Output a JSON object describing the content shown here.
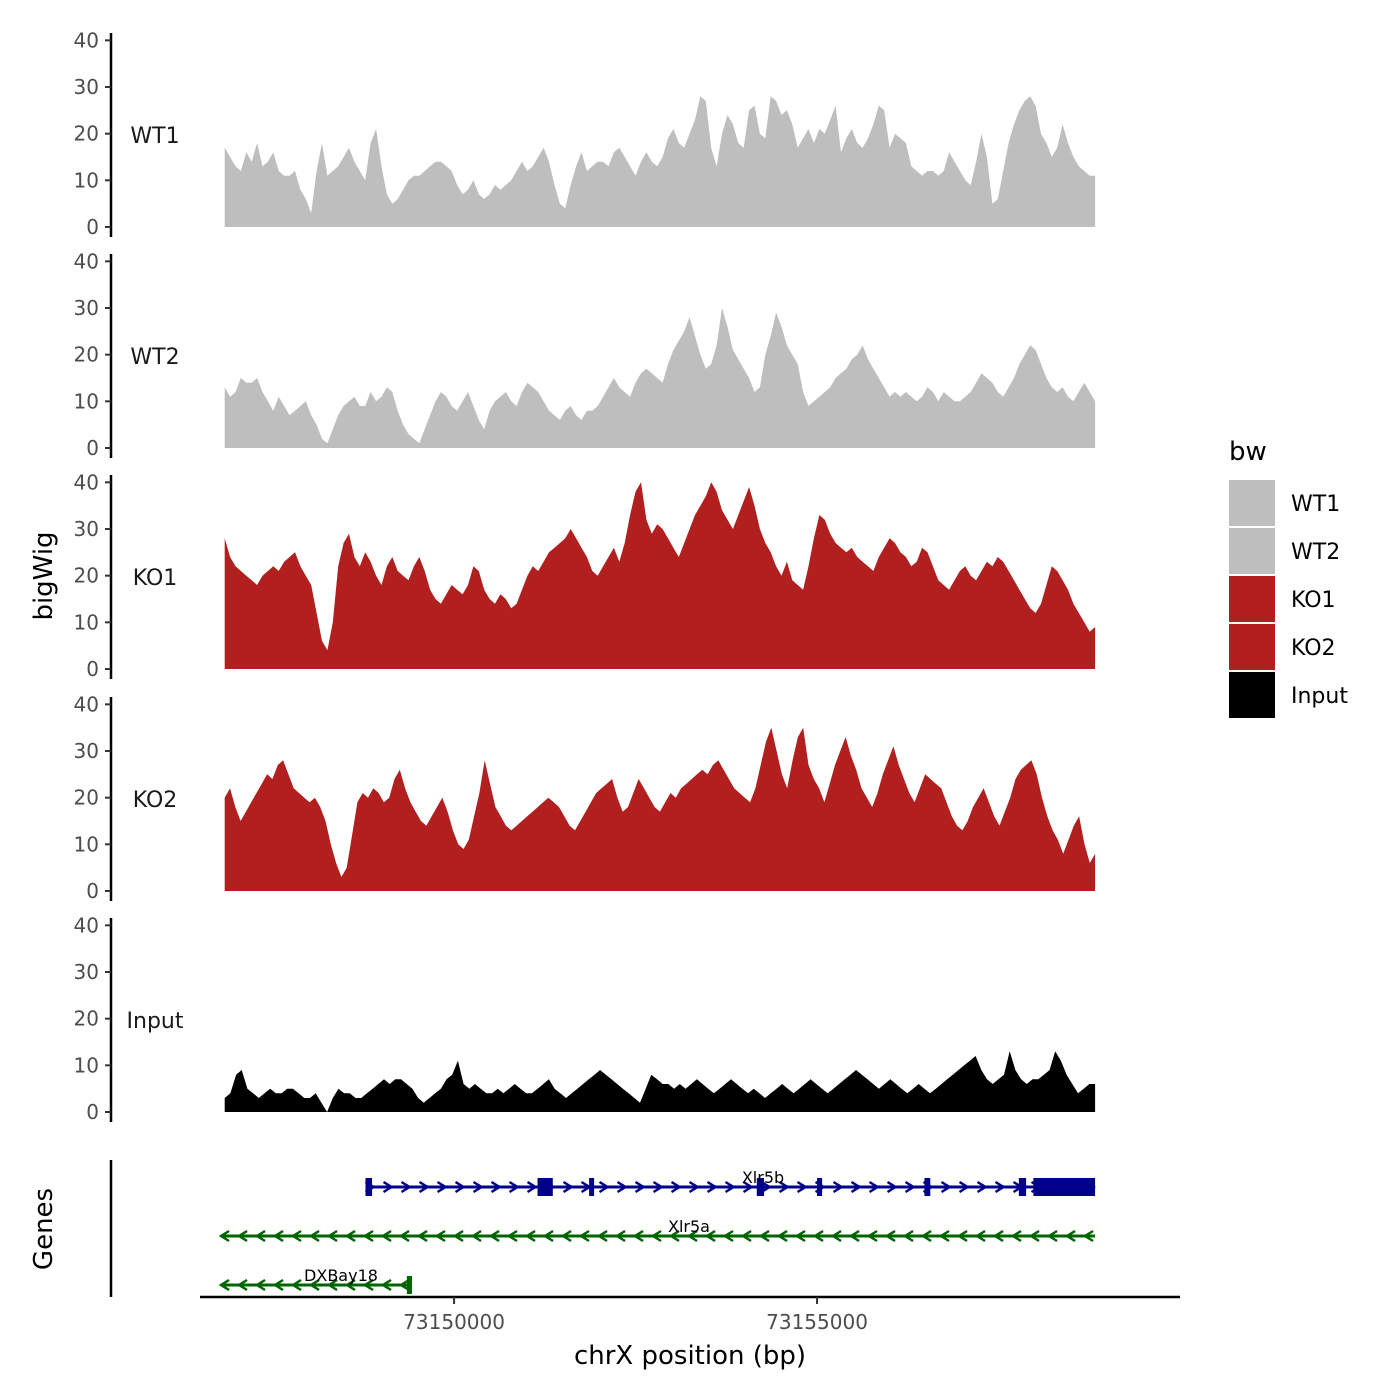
{
  "chart_data": {
    "type": "area",
    "ylabel": "bigWig",
    "xlabel": "chrX position (bp)",
    "y_ticks": [
      0,
      10,
      20,
      30,
      40
    ],
    "ylim": [
      0,
      42
    ],
    "xlim": [
      73146500,
      73160000
    ],
    "x_ticks": [
      73150000,
      73155000
    ],
    "x_tick_labels": [
      "73150000",
      "73155000"
    ],
    "genes_label": "Genes",
    "legend": {
      "title": "bw",
      "entries": [
        {
          "name": "WT1",
          "color": "#bebebe"
        },
        {
          "name": "WT2",
          "color": "#bebebe"
        },
        {
          "name": "KO1",
          "color": "#b21f1f"
        },
        {
          "name": "KO2",
          "color": "#b21f1f"
        },
        {
          "name": "Input",
          "color": "#000000"
        }
      ]
    },
    "series": [
      {
        "name": "WT1",
        "color": "#bebebe",
        "x_start": 73146840,
        "x_end": 73158830,
        "values": [
          17,
          15,
          13,
          12,
          16,
          14,
          18,
          13,
          14,
          16,
          12,
          11,
          11,
          12,
          8,
          6,
          3,
          12,
          18,
          11,
          12,
          13,
          15,
          17,
          14,
          12,
          10,
          18,
          21,
          13,
          7,
          5,
          6,
          8,
          10,
          11,
          11,
          12,
          13,
          14,
          14,
          13,
          12,
          9,
          7,
          8,
          10,
          7,
          6,
          7,
          9,
          8,
          9,
          10,
          12,
          14,
          12,
          13,
          15,
          17,
          14,
          9,
          5,
          4,
          9,
          13,
          16,
          12,
          13,
          14,
          14,
          13,
          16,
          17,
          15,
          13,
          11,
          14,
          16,
          14,
          13,
          15,
          19,
          21,
          18,
          17,
          20,
          23,
          28,
          27,
          17,
          13,
          20,
          24,
          22,
          18,
          17,
          25,
          26,
          20,
          19,
          28,
          27,
          24,
          25,
          22,
          17,
          19,
          21,
          18,
          21,
          20,
          23,
          26,
          16,
          19,
          21,
          18,
          17,
          19,
          22,
          26,
          25,
          17,
          20,
          19,
          18,
          13,
          12,
          11,
          12,
          12,
          11,
          12,
          16,
          14,
          12,
          10,
          9,
          14,
          20,
          15,
          5,
          6,
          12,
          18,
          22,
          25,
          27,
          28,
          26,
          20,
          18,
          15,
          17,
          22,
          18,
          15,
          13,
          12,
          11,
          11
        ]
      },
      {
        "name": "WT2",
        "color": "#bebebe",
        "x_start": 73146840,
        "x_end": 73158830,
        "values": [
          13,
          11,
          12,
          15,
          14,
          14,
          15,
          12,
          10,
          8,
          11,
          9,
          7,
          8,
          9,
          10,
          7,
          5,
          2,
          1,
          4,
          7,
          9,
          10,
          11,
          9,
          9,
          12,
          10,
          11,
          13,
          12,
          8,
          5,
          3,
          2,
          1,
          4,
          7,
          10,
          12,
          11,
          9,
          8,
          10,
          12,
          9,
          6,
          4,
          8,
          10,
          11,
          12,
          10,
          9,
          12,
          14,
          13,
          12,
          10,
          8,
          7,
          6,
          8,
          9,
          7,
          6,
          8,
          8,
          9,
          11,
          13,
          15,
          13,
          12,
          11,
          14,
          16,
          17,
          16,
          15,
          14,
          18,
          21,
          23,
          25,
          28,
          24,
          20,
          17,
          18,
          22,
          30,
          26,
          21,
          19,
          17,
          15,
          12,
          13,
          20,
          24,
          29,
          26,
          22,
          20,
          18,
          12,
          9,
          10,
          11,
          12,
          13,
          15,
          16,
          17,
          19,
          20,
          22,
          19,
          17,
          15,
          13,
          11,
          12,
          11,
          12,
          11,
          10,
          11,
          13,
          12,
          10,
          12,
          11,
          10,
          10,
          11,
          12,
          14,
          16,
          15,
          14,
          12,
          11,
          13,
          15,
          18,
          20,
          22,
          21,
          18,
          15,
          13,
          12,
          13,
          11,
          10,
          12,
          14,
          12,
          10
        ]
      },
      {
        "name": "KO1",
        "color": "#b21f1f",
        "x_start": 73146840,
        "x_end": 73158830,
        "values": [
          28,
          24,
          22,
          21,
          20,
          19,
          18,
          20,
          21,
          22,
          21,
          23,
          24,
          25,
          22,
          20,
          18,
          12,
          6,
          4,
          10,
          22,
          27,
          29,
          24,
          22,
          25,
          23,
          20,
          18,
          22,
          24,
          21,
          20,
          19,
          22,
          24,
          21,
          17,
          15,
          14,
          16,
          18,
          17,
          16,
          18,
          22,
          21,
          17,
          15,
          14,
          16,
          15,
          13,
          14,
          17,
          20,
          22,
          21,
          23,
          25,
          26,
          27,
          28,
          30,
          28,
          26,
          24,
          21,
          20,
          22,
          24,
          26,
          23,
          27,
          33,
          38,
          40,
          32,
          29,
          31,
          30,
          28,
          26,
          24,
          27,
          30,
          33,
          35,
          37,
          40,
          38,
          34,
          32,
          30,
          33,
          36,
          39,
          35,
          30,
          27,
          25,
          22,
          20,
          23,
          19,
          18,
          17,
          22,
          28,
          33,
          32,
          29,
          27,
          26,
          25,
          26,
          24,
          23,
          22,
          21,
          24,
          26,
          28,
          27,
          25,
          24,
          22,
          23,
          26,
          25,
          22,
          19,
          18,
          17,
          19,
          21,
          22,
          20,
          19,
          21,
          23,
          22,
          24,
          23,
          21,
          19,
          17,
          15,
          13,
          12,
          14,
          18,
          22,
          21,
          19,
          17,
          14,
          12,
          10,
          8,
          9
        ]
      },
      {
        "name": "KO2",
        "color": "#b21f1f",
        "x_start": 73146840,
        "x_end": 73158830,
        "values": [
          20,
          22,
          18,
          15,
          17,
          19,
          21,
          23,
          25,
          24,
          27,
          28,
          25,
          22,
          21,
          20,
          19,
          20,
          18,
          15,
          10,
          6,
          3,
          5,
          12,
          19,
          21,
          20,
          22,
          21,
          19,
          20,
          24,
          26,
          22,
          19,
          17,
          15,
          14,
          16,
          18,
          20,
          17,
          13,
          10,
          9,
          11,
          16,
          21,
          28,
          23,
          18,
          16,
          14,
          13,
          14,
          15,
          16,
          17,
          18,
          19,
          20,
          19,
          18,
          16,
          14,
          13,
          15,
          17,
          19,
          21,
          22,
          23,
          24,
          20,
          17,
          18,
          21,
          24,
          22,
          20,
          18,
          17,
          19,
          21,
          20,
          22,
          23,
          24,
          25,
          26,
          25,
          27,
          28,
          26,
          24,
          22,
          21,
          20,
          19,
          22,
          27,
          32,
          35,
          30,
          25,
          22,
          28,
          33,
          35,
          27,
          24,
          22,
          19,
          23,
          27,
          30,
          33,
          29,
          26,
          22,
          20,
          18,
          21,
          25,
          28,
          31,
          27,
          24,
          21,
          19,
          22,
          25,
          24,
          23,
          22,
          19,
          16,
          14,
          13,
          15,
          18,
          20,
          22,
          19,
          16,
          14,
          17,
          20,
          24,
          26,
          27,
          28,
          25,
          20,
          16,
          13,
          11,
          8,
          11,
          14,
          16,
          10,
          6,
          8
        ]
      },
      {
        "name": "Input",
        "color": "#000000",
        "x_start": 73146840,
        "x_end": 73158830,
        "values": [
          3,
          4,
          8,
          9,
          5,
          4,
          3,
          4,
          5,
          4,
          4,
          5,
          5,
          4,
          3,
          3,
          4,
          2,
          0,
          3,
          5,
          4,
          4,
          3,
          3,
          4,
          5,
          6,
          7,
          6,
          7,
          7,
          6,
          5,
          3,
          2,
          3,
          4,
          5,
          7,
          8,
          11,
          6,
          5,
          6,
          5,
          4,
          4,
          5,
          4,
          5,
          6,
          5,
          4,
          4,
          5,
          6,
          7,
          5,
          4,
          3,
          4,
          5,
          6,
          7,
          8,
          9,
          8,
          7,
          6,
          5,
          4,
          3,
          2,
          5,
          8,
          7,
          6,
          6,
          5,
          6,
          5,
          6,
          7,
          6,
          5,
          4,
          5,
          6,
          7,
          6,
          5,
          4,
          5,
          4,
          3,
          4,
          5,
          6,
          5,
          4,
          5,
          6,
          7,
          6,
          5,
          4,
          5,
          6,
          7,
          8,
          9,
          8,
          7,
          6,
          5,
          6,
          7,
          6,
          5,
          4,
          5,
          6,
          5,
          4,
          5,
          6,
          7,
          8,
          9,
          10,
          11,
          12,
          9,
          7,
          6,
          7,
          8,
          13,
          9,
          7,
          6,
          7,
          7,
          8,
          9,
          13,
          11,
          8,
          6,
          4,
          5,
          6,
          6
        ]
      }
    ],
    "genes": [
      {
        "name": "Xlr5b",
        "strand": "+",
        "color": "#00008b",
        "start": 73148780,
        "end": 73158830,
        "exons": [
          [
            73148780,
            73148870
          ],
          [
            73151150,
            73151360
          ],
          [
            73151860,
            73151920
          ],
          [
            73154170,
            73154270
          ],
          [
            73155000,
            73155070
          ],
          [
            73156480,
            73156560
          ],
          [
            73157780,
            73157880
          ],
          [
            73157980,
            73158830
          ]
        ]
      },
      {
        "name": "Xlr5a",
        "strand": "-",
        "color": "#006400",
        "start": 73146790,
        "end": 73158830,
        "exons": []
      },
      {
        "name": "DXBay18",
        "strand": "-",
        "color": "#006400",
        "start": 73146790,
        "end": 73149400,
        "exons": [
          [
            73149350,
            73149420
          ]
        ]
      }
    ]
  }
}
